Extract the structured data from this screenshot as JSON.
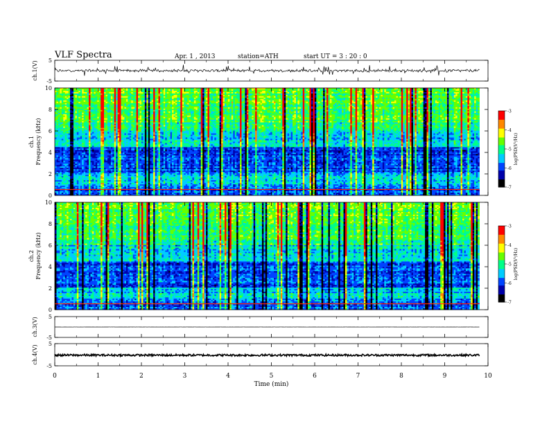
{
  "header": {
    "title": "VLF  Spectra",
    "date": "Apr. 1 , 2013",
    "station": "station=ATH",
    "start": "start  UT  =   3 : 20 : 0"
  },
  "colors": {
    "scale": [
      "#000000",
      "#0000aa",
      "#0044ff",
      "#00ccff",
      "#00ff88",
      "#66ff00",
      "#ffff00",
      "#ff8800",
      "#ff0000",
      "#ffffff"
    ]
  },
  "chart_data": [
    {
      "type": "line",
      "name": "ch1",
      "ylabel": "ch.1(V)",
      "ylim": [
        -5,
        5
      ],
      "y_ticks": [
        "5",
        "-5"
      ],
      "x": [
        0,
        9.8
      ],
      "baseline": 0,
      "note_values": "noisy trace centred near 0 V with spikes to about ±2 V"
    },
    {
      "type": "heatmap",
      "name": "ch1-spectrogram",
      "ylabel_top": "ch.1",
      "ylabel": "Frequency  (kHz)",
      "ylim": [
        0,
        10
      ],
      "y_ticks": [
        "0",
        "2",
        "4",
        "6",
        "8",
        "10"
      ],
      "xlim": [
        0,
        9.8
      ],
      "colorbar": {
        "label": "log(PSD(V²/Hz)",
        "range": [
          -7,
          -3
        ],
        "ticks": [
          "-3",
          "-4",
          "-5",
          "-6",
          "-7"
        ]
      }
    },
    {
      "type": "heatmap",
      "name": "ch2-spectrogram",
      "ylabel_top": "ch.2",
      "ylabel": "Frequency  (kHz)",
      "ylim": [
        0,
        10
      ],
      "y_ticks": [
        "0",
        "2",
        "4",
        "6",
        "8",
        "10"
      ],
      "xlim": [
        0,
        9.8
      ],
      "colorbar": {
        "label": "log(PSD(V²/Hz)",
        "range": [
          -7,
          -3
        ],
        "ticks": [
          "-3",
          "-4",
          "-5",
          "-6",
          "-7"
        ]
      }
    },
    {
      "type": "line",
      "name": "ch3",
      "ylabel": "ch.3(V)",
      "ylim": [
        -5,
        5
      ],
      "y_ticks": [
        "5",
        "-5"
      ],
      "x": [
        0,
        9.8
      ],
      "baseline": 0
    },
    {
      "type": "line",
      "name": "ch4",
      "ylabel": "ch.4(V)",
      "ylim": [
        -5,
        5
      ],
      "y_ticks": [
        "5",
        "-5"
      ],
      "x": [
        0,
        9.8
      ],
      "baseline": -0.2
    }
  ],
  "x_axis": {
    "label": "Time  (min)",
    "range": [
      0,
      10
    ],
    "ticks": [
      "0",
      "1",
      "2",
      "3",
      "4",
      "5",
      "6",
      "7",
      "8",
      "9",
      "10"
    ]
  }
}
